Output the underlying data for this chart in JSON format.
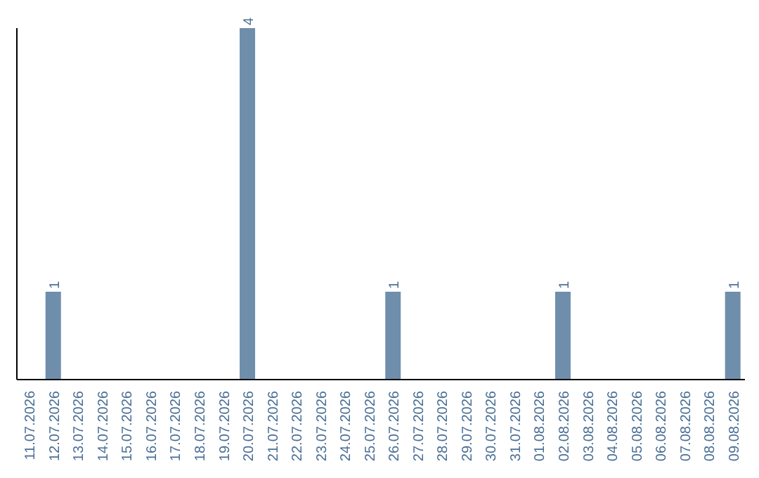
{
  "chart_data": {
    "type": "bar",
    "categories": [
      "11.07.2026",
      "12.07.2026",
      "13.07.2026",
      "14.07.2026",
      "15.07.2026",
      "16.07.2026",
      "17.07.2026",
      "18.07.2026",
      "19.07.2026",
      "20.07.2026",
      "21.07.2026",
      "22.07.2026",
      "23.07.2026",
      "24.07.2026",
      "25.07.2026",
      "26.07.2026",
      "27.07.2026",
      "28.07.2026",
      "29.07.2026",
      "30.07.2026",
      "31.07.2026",
      "01.08.2026",
      "02.08.2026",
      "03.08.2026",
      "04.08.2026",
      "05.08.2026",
      "06.08.2026",
      "07.08.2026",
      "08.08.2026",
      "09.08.2026"
    ],
    "values": [
      0,
      1,
      0,
      0,
      0,
      0,
      0,
      0,
      0,
      4,
      0,
      0,
      0,
      0,
      0,
      1,
      0,
      0,
      0,
      0,
      0,
      0,
      1,
      0,
      0,
      0,
      0,
      0,
      0,
      1
    ],
    "value_labels": [
      null,
      "1",
      null,
      null,
      null,
      null,
      null,
      null,
      null,
      "4",
      null,
      null,
      null,
      null,
      null,
      "1",
      null,
      null,
      null,
      null,
      null,
      null,
      "1",
      null,
      null,
      null,
      null,
      null,
      null,
      "1"
    ],
    "color": "#6e8eac",
    "tick_labels": "x"
  }
}
